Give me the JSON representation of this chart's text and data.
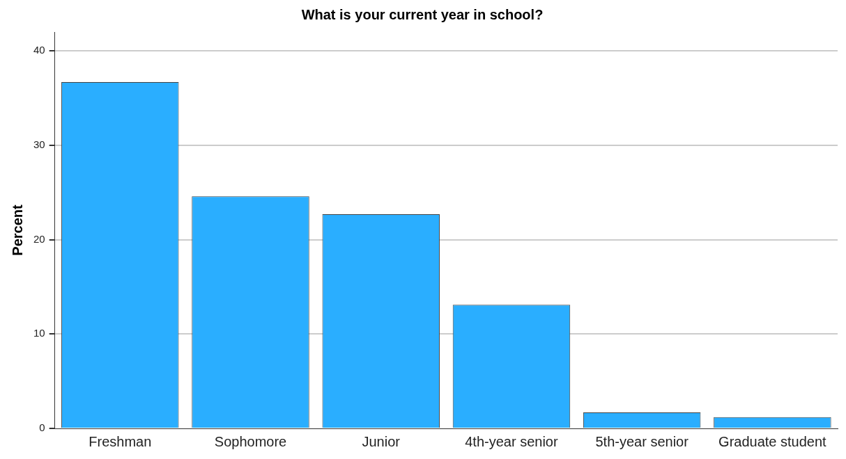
{
  "chart_data": {
    "type": "bar",
    "title": "What is your current year in school?",
    "ylabel": "Percent",
    "categories": [
      "Freshman",
      "Sophomore",
      "Junior",
      "4th-year senior",
      "5th-year senior",
      "Graduate student"
    ],
    "values": [
      36.7,
      24.6,
      22.7,
      13.1,
      1.7,
      1.2
    ],
    "color": "#2aaeff",
    "ylim": [
      0,
      42
    ],
    "yticks": [
      0,
      10,
      20,
      30,
      40
    ],
    "grid": "y",
    "legend": false
  }
}
